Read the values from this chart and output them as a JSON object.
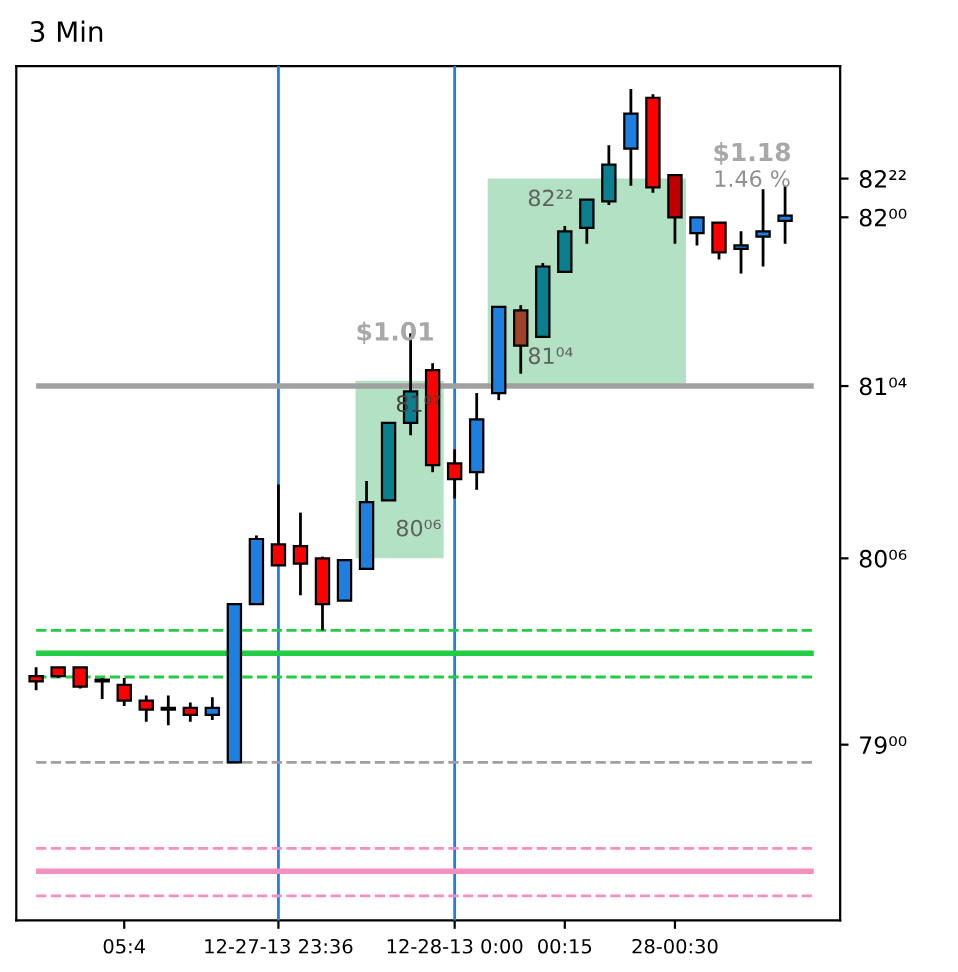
{
  "chart_data": {
    "type": "candlestick",
    "title": "3 Min",
    "categories": [
      null,
      null,
      null,
      null,
      "05:4",
      null,
      null,
      null,
      null,
      null,
      null,
      "12-27-13 23:36",
      null,
      null,
      null,
      null,
      null,
      null,
      null,
      "12-28-13 0:00",
      null,
      null,
      null,
      null,
      "00:15",
      null,
      null,
      null,
      null,
      "28-00:30",
      null,
      null,
      null,
      null,
      null
    ],
    "ohlc": [
      [
        79.39,
        79.44,
        79.31,
        79.36
      ],
      [
        79.44,
        79.44,
        79.38,
        79.39
      ],
      [
        79.44,
        79.44,
        79.32,
        79.33
      ],
      [
        79.36,
        79.38,
        79.26,
        79.37
      ],
      [
        79.34,
        79.38,
        79.22,
        79.25
      ],
      [
        79.25,
        79.28,
        79.13,
        79.2
      ],
      [
        79.2,
        79.28,
        79.11,
        79.21
      ],
      [
        79.21,
        79.24,
        79.13,
        79.17
      ],
      [
        79.17,
        79.27,
        79.14,
        79.21
      ],
      [
        78.9,
        79.8,
        78.9,
        79.8
      ],
      [
        79.8,
        80.19,
        79.8,
        80.17
      ],
      [
        80.14,
        80.48,
        80.02,
        80.02
      ],
      [
        80.13,
        80.32,
        79.85,
        80.03
      ],
      [
        80.06,
        80.07,
        79.65,
        79.8
      ],
      [
        79.82,
        80.05,
        79.82,
        80.05
      ],
      [
        80.0,
        80.5,
        80.0,
        80.38
      ],
      [
        80.39,
        80.83,
        80.39,
        80.83
      ],
      [
        80.83,
        81.34,
        80.76,
        81.01
      ],
      [
        81.13,
        81.17,
        80.55,
        80.59
      ],
      [
        80.6,
        80.68,
        80.4,
        80.51
      ],
      [
        80.55,
        81.0,
        80.45,
        80.85
      ],
      [
        81.0,
        81.49,
        80.96,
        81.49
      ],
      [
        81.47,
        81.5,
        81.11,
        81.27
      ],
      [
        81.32,
        81.74,
        81.32,
        81.72
      ],
      [
        81.69,
        81.95,
        81.69,
        81.92
      ],
      [
        81.94,
        82.1,
        81.85,
        82.1
      ],
      [
        82.09,
        82.41,
        82.07,
        82.3
      ],
      [
        82.39,
        82.73,
        82.18,
        82.59
      ],
      [
        82.68,
        82.7,
        82.14,
        82.17
      ],
      [
        82.24,
        82.24,
        81.85,
        82.0
      ],
      [
        81.91,
        82.0,
        81.84,
        82.0
      ],
      [
        81.97,
        81.97,
        81.76,
        81.8
      ],
      [
        81.82,
        81.92,
        81.68,
        81.84
      ],
      [
        81.89,
        82.16,
        81.72,
        81.92
      ],
      [
        81.98,
        82.18,
        81.85,
        82.01
      ]
    ],
    "colors": [
      "#ff0000",
      "#ff0000",
      "#ff0000",
      "#1e7fe0",
      "#ff0000",
      "#ff0000",
      "#1e7fe0",
      "#ff0000",
      "#1e7fe0",
      "#1e7fe0",
      "#1e7fe0",
      "#ff0000",
      "#ff0000",
      "#ff0000",
      "#1e7fe0",
      "#1e7fe0",
      "#0a7f8f",
      "#0a7f8f",
      "#ff0000",
      "#ff0000",
      "#1e7fe0",
      "#1e7fe0",
      "#a0422a",
      "#0a7f8f",
      "#0a7f8f",
      "#0a7f8f",
      "#0a7f8f",
      "#1e7fe0",
      "#ff0000",
      "#c00000",
      "#1e7fe0",
      "#ff0000",
      "#1e7fe0",
      "#1e7fe0",
      "#1e7fe0"
    ],
    "ylim": [
      78.0,
      82.86
    ],
    "yticks": [
      {
        "value": 79,
        "label": "79⁰⁰"
      },
      {
        "value": 80.06,
        "label": "80⁰⁶"
      },
      {
        "value": 81.04,
        "label": "81⁰⁴"
      },
      {
        "value": 82,
        "label": "82⁰⁰"
      },
      {
        "value": 82.22,
        "label": "82²²"
      }
    ],
    "ref_lines": [
      {
        "axis": "x",
        "value": "12-27-13 23:36",
        "color": "#1e7fe0"
      },
      {
        "axis": "x",
        "value": "12-28-13 0:00",
        "color": "#1e7fe0"
      },
      {
        "axis": "y",
        "value": 79.65,
        "color": "#22cc44",
        "line_style": "dashed"
      },
      {
        "axis": "y",
        "value": 79.52,
        "color": "#22cc44",
        "line_style": "solid"
      },
      {
        "axis": "y",
        "value": 79.385,
        "color": "#22cc44",
        "line_style": "dashed"
      },
      {
        "axis": "y",
        "value": 78.9,
        "color": "#a0a0a0",
        "line_style": "dashed"
      },
      {
        "axis": "y",
        "value": 78.41,
        "color": "#f48fc0",
        "line_style": "dashed"
      },
      {
        "axis": "y",
        "value": 78.28,
        "color": "#f48fc0",
        "line_style": "solid"
      },
      {
        "axis": "y",
        "value": 78.14,
        "color": "#f48fc0",
        "line_style": "dashed"
      },
      {
        "axis": "y",
        "value": 81.04,
        "color": "#a0a0a0",
        "line_style": "solid"
      }
    ],
    "bands": [
      {
        "axis": "y",
        "from": 80.06,
        "to": 81.07,
        "label": "$1.01",
        "color": "#9fd9b5"
      },
      {
        "axis": "y",
        "from": 81.04,
        "to": 82.22,
        "label": "$1.18",
        "color": "#9fd9b5"
      }
    ],
    "annotations": [
      {
        "text": "80⁰⁶",
        "y": 80.06
      },
      {
        "text": "81⁰⁷",
        "y": 81.07
      },
      {
        "text": "81⁰⁴",
        "y": 81.04
      },
      {
        "text": "82²²",
        "y": 82.22
      },
      "1.46 %"
    ],
    "tick_labels": "xy"
  }
}
